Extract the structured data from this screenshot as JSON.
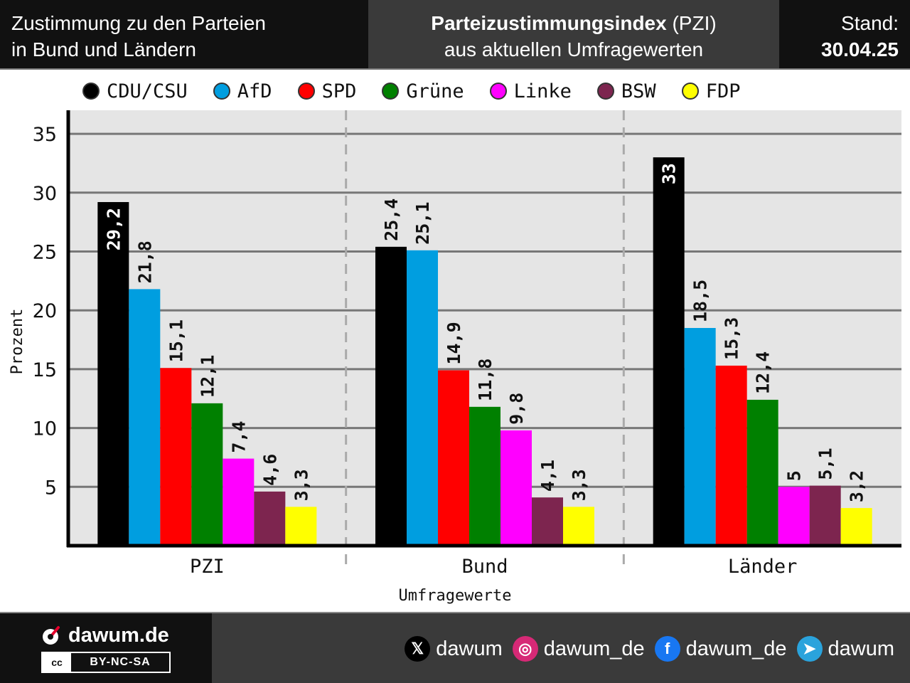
{
  "header": {
    "left_line1": "Zustimmung zu den Parteien",
    "left_line2": "in Bund und Ländern",
    "center_bold": "Parteizustimmungsindex",
    "center_rest": " (PZI)",
    "center_line2": "aus aktuellen Umfragewerten",
    "stand_label": "Stand:",
    "stand_date": "30.04.25"
  },
  "footer": {
    "brand": "dawum.de",
    "license": "BY-NC-SA",
    "license_icon": "cc",
    "social": [
      {
        "icon": "x-icon",
        "symbol": "𝕏",
        "color": "#000000",
        "handle": "dawum"
      },
      {
        "icon": "instagram-icon",
        "symbol": "◎",
        "color": "#d62976",
        "handle": "dawum_de"
      },
      {
        "icon": "facebook-icon",
        "symbol": "f",
        "color": "#1877f2",
        "handle": "dawum_de"
      },
      {
        "icon": "telegram-icon",
        "symbol": "➤",
        "color": "#2aa3dc",
        "handle": "dawum"
      }
    ]
  },
  "chart_data": {
    "type": "bar",
    "categories": [
      "PZI",
      "Bund",
      "Länder"
    ],
    "xlabel": "Umfragewerte",
    "ylabel": "Prozent",
    "ylim": [
      0,
      37
    ],
    "yticks": [
      5,
      10,
      15,
      20,
      25,
      30,
      35
    ],
    "grid": true,
    "legend": "top",
    "value_labels": [
      [
        "29,2",
        "21,8",
        "15,1",
        "12,1",
        "7,4",
        "4,6",
        "3,3"
      ],
      [
        "25,4",
        "25,1",
        "14,9",
        "11,8",
        "9,8",
        "4,1",
        "3,3"
      ],
      [
        "33",
        "18,5",
        "15,3",
        "12,4",
        "5",
        "5,1",
        "3,2"
      ]
    ],
    "series": [
      {
        "name": "CDU/CSU",
        "color": "#000000",
        "values": [
          29.2,
          25.4,
          33
        ]
      },
      {
        "name": "AfD",
        "color": "#009ee0",
        "values": [
          21.8,
          25.1,
          18.5
        ]
      },
      {
        "name": "SPD",
        "color": "#ff0000",
        "values": [
          15.1,
          14.9,
          15.3
        ]
      },
      {
        "name": "Grüne",
        "color": "#008000",
        "values": [
          12.1,
          11.8,
          12.4
        ]
      },
      {
        "name": "Linke",
        "color": "#ff00ff",
        "values": [
          7.4,
          9.8,
          5
        ]
      },
      {
        "name": "BSW",
        "color": "#7d254f",
        "values": [
          4.6,
          4.1,
          5.1
        ]
      },
      {
        "name": "FDP",
        "color": "#ffff00",
        "values": [
          3.3,
          3.3,
          3.2
        ]
      }
    ]
  }
}
